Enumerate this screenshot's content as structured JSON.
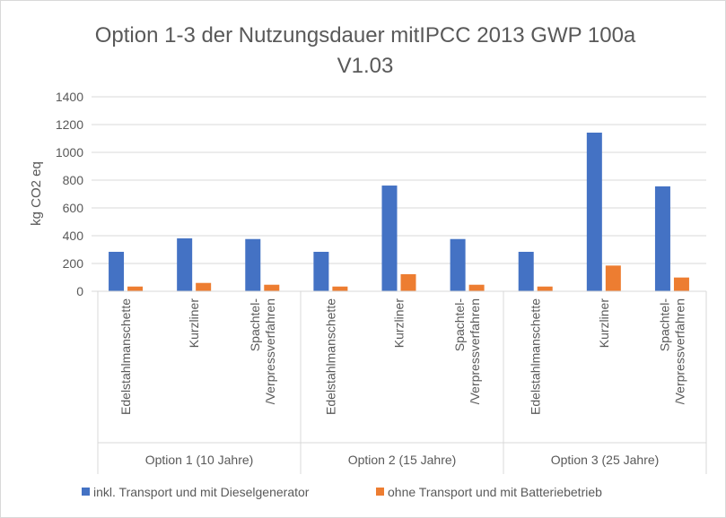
{
  "chart_data": {
    "type": "bar",
    "title": "Option 1-3 der Nutzungsdauer mitIPCC 2013 GWP 100a",
    "title_line2": "V1.03",
    "ylabel": "kg CO2 eq",
    "ylim": [
      0,
      1400
    ],
    "yticks": [
      0,
      200,
      400,
      600,
      800,
      1000,
      1200,
      1400
    ],
    "grid": true,
    "legend_position": "bottom",
    "groups": [
      {
        "label": "Option 1 (10 Jahre)",
        "categories": [
          "Edelstahlmanschette",
          "Kurzliner",
          "Spachtel-\n/Verpressverfahren"
        ]
      },
      {
        "label": "Option 2 (15 Jahre)",
        "categories": [
          "Edelstahlmanschette",
          "Kurzliner",
          "Spachtel-\n/Verpressverfahren"
        ]
      },
      {
        "label": "Option 3 (25 Jahre)",
        "categories": [
          "Edelstahlmanschette",
          "Kurzliner",
          "Spachtel-\n/Verpressverfahren"
        ]
      }
    ],
    "series": [
      {
        "name": "inkl. Transport und mit Dieselgenerator",
        "color": "#4472c4",
        "values": [
          284,
          381,
          376,
          284,
          761,
          376,
          284,
          1142,
          755
        ]
      },
      {
        "name": "ohne Transport und mit Batteriebetrieb",
        "color": "#ed7d31",
        "values": [
          34,
          60,
          47,
          34,
          123,
          47,
          34,
          185,
          99
        ]
      }
    ]
  }
}
